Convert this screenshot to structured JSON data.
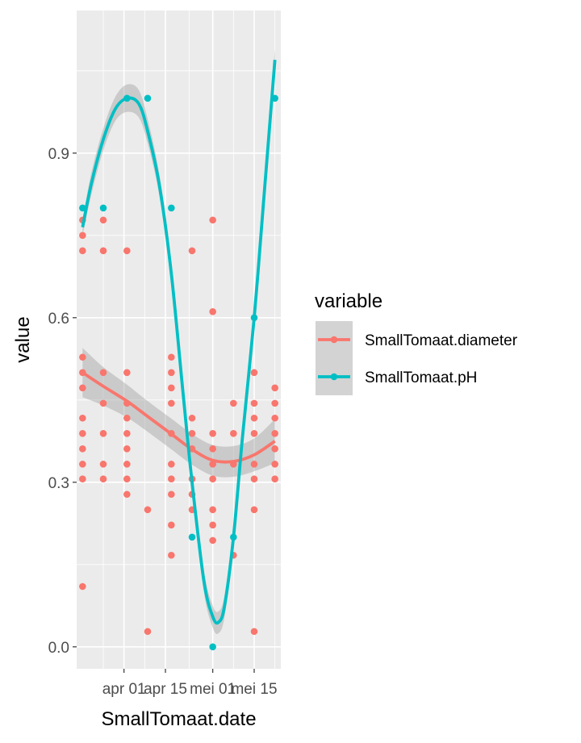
{
  "chart_data": {
    "type": "scatter",
    "title": "",
    "xlabel": "SmallTomaat.date",
    "ylabel": "value",
    "x_ticks": [
      {
        "date": "2016-04-01",
        "label": "apr 01"
      },
      {
        "date": "2016-04-15",
        "label": "apr 15"
      },
      {
        "date": "2016-05-01",
        "label": "mei 01"
      },
      {
        "date": "2016-05-15",
        "label": "mei 15"
      }
    ],
    "xlim": [
      "2016-03-16",
      "2016-05-24"
    ],
    "y_ticks": [
      0.0,
      0.3,
      0.6,
      0.9
    ],
    "y_tick_labels": [
      "0.0",
      "0.3",
      "0.6",
      "0.9"
    ],
    "ylim": [
      -0.04,
      1.16
    ],
    "grid": true,
    "legend": {
      "title": "variable",
      "position": "right"
    },
    "series": [
      {
        "name": "SmallTomaat.diameter",
        "color": "#F8766D",
        "points": [
          {
            "x": "2016-03-18",
            "y": [
              0.11,
              0.306,
              0.333,
              0.361,
              0.389,
              0.417,
              0.472,
              0.5,
              0.528,
              0.722,
              0.75,
              0.778
            ]
          },
          {
            "x": "2016-03-25",
            "y": [
              0.306,
              0.333,
              0.389,
              0.444,
              0.5,
              0.722,
              0.778
            ]
          },
          {
            "x": "2016-04-02",
            "y": [
              0.278,
              0.306,
              0.333,
              0.361,
              0.389,
              0.417,
              0.444,
              0.5,
              0.722
            ]
          },
          {
            "x": "2016-04-09",
            "y": [
              0.028,
              0.25
            ]
          },
          {
            "x": "2016-04-17",
            "y": [
              0.167,
              0.222,
              0.278,
              0.306,
              0.333,
              0.389,
              0.444,
              0.472,
              0.5,
              0.528
            ]
          },
          {
            "x": "2016-04-24",
            "y": [
              0.25,
              0.278,
              0.306,
              0.361,
              0.389,
              0.417,
              0.722
            ]
          },
          {
            "x": "2016-05-01",
            "y": [
              0.194,
              0.222,
              0.25,
              0.306,
              0.333,
              0.361,
              0.389,
              0.611,
              0.778
            ]
          },
          {
            "x": "2016-05-08",
            "y": [
              0.167,
              0.333,
              0.389,
              0.444
            ]
          },
          {
            "x": "2016-05-15",
            "y": [
              0.028,
              0.25,
              0.306,
              0.333,
              0.389,
              0.417,
              0.444,
              0.5
            ]
          },
          {
            "x": "2016-05-22",
            "y": [
              0.306,
              0.333,
              0.361,
              0.389,
              0.417,
              0.444,
              0.472
            ]
          }
        ],
        "smooth": {
          "x": [
            "2016-03-18",
            "2016-03-25",
            "2016-04-02",
            "2016-04-09",
            "2016-04-17",
            "2016-04-24",
            "2016-05-01",
            "2016-05-08",
            "2016-05-15",
            "2016-05-22"
          ],
          "y": [
            0.5,
            0.475,
            0.448,
            0.42,
            0.388,
            0.36,
            0.34,
            0.338,
            0.35,
            0.375
          ],
          "band": [
            0.045,
            0.035,
            0.03,
            0.028,
            0.028,
            0.028,
            0.028,
            0.028,
            0.03,
            0.04
          ]
        }
      },
      {
        "name": "SmallTomaat.pH",
        "color": "#00BFC4",
        "points": [
          {
            "x": "2016-03-18",
            "y": [
              0.8
            ]
          },
          {
            "x": "2016-03-25",
            "y": [
              0.8
            ]
          },
          {
            "x": "2016-04-02",
            "y": [
              1.0
            ]
          },
          {
            "x": "2016-04-09",
            "y": [
              1.0
            ]
          },
          {
            "x": "2016-04-17",
            "y": [
              0.8
            ]
          },
          {
            "x": "2016-04-24",
            "y": [
              0.2
            ]
          },
          {
            "x": "2016-05-01",
            "y": [
              0.0
            ]
          },
          {
            "x": "2016-05-08",
            "y": [
              0.2
            ]
          },
          {
            "x": "2016-05-15",
            "y": [
              0.6
            ]
          },
          {
            "x": "2016-05-22",
            "y": [
              1.0
            ]
          }
        ],
        "smooth": {
          "x": [
            "2016-03-18",
            "2016-03-21",
            "2016-03-25",
            "2016-03-29",
            "2016-04-02",
            "2016-04-06",
            "2016-04-09",
            "2016-04-13",
            "2016-04-17",
            "2016-04-21",
            "2016-04-24",
            "2016-04-28",
            "2016-05-01",
            "2016-05-03",
            "2016-05-05",
            "2016-05-08",
            "2016-05-11",
            "2016-05-15",
            "2016-05-18",
            "2016-05-22"
          ],
          "y": [
            0.765,
            0.845,
            0.925,
            0.98,
            1.0,
            0.99,
            0.94,
            0.84,
            0.68,
            0.46,
            0.3,
            0.12,
            0.055,
            0.045,
            0.075,
            0.2,
            0.38,
            0.6,
            0.8,
            1.07
          ],
          "band": [
            0.015,
            0.02,
            0.02,
            0.022,
            0.025,
            0.025,
            0.022,
            0.02,
            0.02,
            0.02,
            0.02,
            0.02,
            0.02,
            0.02,
            0.02,
            0.02,
            0.02,
            0.02,
            0.02,
            0.02
          ]
        }
      }
    ]
  }
}
